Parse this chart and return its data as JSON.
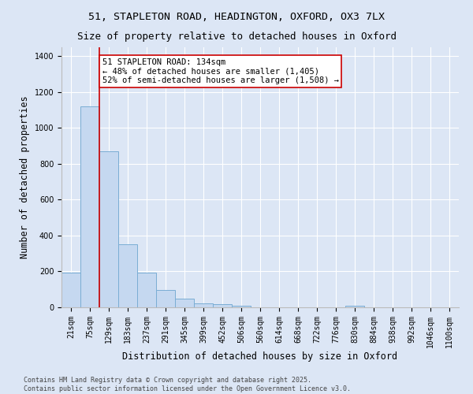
{
  "title_line1": "51, STAPLETON ROAD, HEADINGTON, OXFORD, OX3 7LX",
  "title_line2": "Size of property relative to detached houses in Oxford",
  "xlabel": "Distribution of detached houses by size in Oxford",
  "ylabel": "Number of detached properties",
  "bar_color": "#c5d8f0",
  "bar_edge_color": "#7aadd4",
  "background_color": "#dce6f5",
  "grid_color": "#ffffff",
  "categories": [
    "21sqm",
    "75sqm",
    "129sqm",
    "183sqm",
    "237sqm",
    "291sqm",
    "345sqm",
    "399sqm",
    "452sqm",
    "506sqm",
    "560sqm",
    "614sqm",
    "668sqm",
    "722sqm",
    "776sqm",
    "830sqm",
    "884sqm",
    "938sqm",
    "992sqm",
    "1046sqm",
    "1100sqm"
  ],
  "values": [
    193,
    1120,
    870,
    350,
    195,
    95,
    50,
    22,
    17,
    10,
    0,
    0,
    0,
    0,
    0,
    10,
    0,
    0,
    0,
    0,
    0
  ],
  "ylim": [
    0,
    1450
  ],
  "yticks": [
    0,
    200,
    400,
    600,
    800,
    1000,
    1200,
    1400
  ],
  "annotation_text": "51 STAPLETON ROAD: 134sqm\n← 48% of detached houses are smaller (1,405)\n52% of semi-detached houses are larger (1,508) →",
  "vline_x_index": 2,
  "vline_color": "#cc0000",
  "annotation_box_color": "#ffffff",
  "annotation_box_edge": "#cc0000",
  "footer_line1": "Contains HM Land Registry data © Crown copyright and database right 2025.",
  "footer_line2": "Contains public sector information licensed under the Open Government Licence v3.0.",
  "title_fontsize": 9.5,
  "label_fontsize": 8.5,
  "tick_fontsize": 7,
  "annotation_fontsize": 7.5,
  "footer_fontsize": 6
}
